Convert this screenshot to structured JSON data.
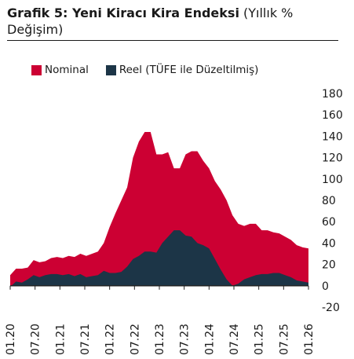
{
  "title": {
    "bold": "Grafik 5: Yeni Kiracı Kira Endeksi",
    "normal": " (Yıllık % Değişim)"
  },
  "chart_data": {
    "type": "area",
    "title": "Grafik 5: Yeni Kiracı Kira Endeksi (Yıllık % Değişim)",
    "ylim": [
      -20,
      180
    ],
    "yticks": [
      -20,
      0,
      20,
      40,
      60,
      80,
      100,
      120,
      140,
      160,
      180
    ],
    "xticks": [
      "01.20",
      "07.20",
      "01.21",
      "07.21",
      "01.22",
      "07.22",
      "01.23",
      "07.23",
      "01.24",
      "07.24",
      "01.25",
      "07.25",
      "01.26"
    ],
    "legend": "top",
    "grid": false,
    "series": [
      {
        "name": "Nominal",
        "color": "#cc0033",
        "values": [
          10,
          16,
          16,
          17,
          24,
          22,
          23,
          26,
          27,
          26,
          28,
          27,
          30,
          28,
          30,
          32,
          40,
          55,
          68,
          80,
          92,
          120,
          135,
          144,
          144,
          123,
          123,
          125,
          110,
          110,
          123,
          126,
          126,
          117,
          110,
          98,
          90,
          80,
          66,
          58,
          56,
          58,
          58,
          52,
          52,
          50,
          49,
          46,
          43,
          38,
          36,
          35
        ]
      },
      {
        "name": "Reel (TÜFE ile Düzeltilmiş)",
        "color": "#1c3547",
        "values": [
          -1,
          4,
          3,
          6,
          10,
          8,
          10,
          11,
          11,
          10,
          11,
          9,
          11,
          8,
          9,
          10,
          14,
          12,
          12,
          13,
          18,
          25,
          28,
          32,
          32,
          31,
          40,
          46,
          52,
          52,
          47,
          46,
          40,
          38,
          35,
          25,
          15,
          6,
          0,
          2,
          6,
          8,
          10,
          11,
          11,
          12,
          12,
          10,
          8,
          5,
          4,
          3
        ]
      }
    ]
  }
}
